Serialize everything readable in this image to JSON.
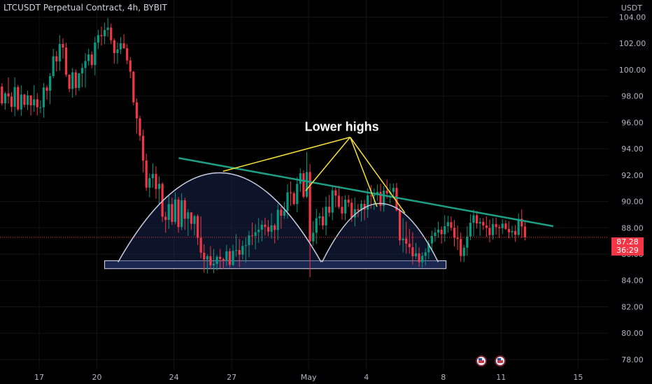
{
  "header": {
    "title": "LTCUSDT Perpetual Contract, 4h, BYBIT",
    "currency": "USDT"
  },
  "price_badge": {
    "price": "87.28",
    "countdown": "36:29"
  },
  "colors": {
    "up": "#089981",
    "down": "#f23645",
    "trendline": "#1e9e84",
    "annotation": "#f7e03c",
    "dome": "#c9cbe0",
    "support": "#d8dcee"
  },
  "icons": [
    "economic-event-flag-icon",
    "economic-event-flag-icon"
  ],
  "chart_data": {
    "type": "candlestick",
    "ylim": [
      77.2,
      105.3
    ],
    "y_ticks": [
      {
        "value": 104,
        "label": "104.00"
      },
      {
        "value": 102,
        "label": "102.00"
      },
      {
        "value": 100,
        "label": "100.00"
      },
      {
        "value": 98,
        "label": "98.00"
      },
      {
        "value": 96,
        "label": "96.00"
      },
      {
        "value": 94,
        "label": "94.00"
      },
      {
        "value": 92,
        "label": "92.00"
      },
      {
        "value": 90,
        "label": "90.00"
      },
      {
        "value": 88,
        "label": "88.00"
      },
      {
        "value": 86,
        "label": "86.00"
      },
      {
        "value": 84,
        "label": "84.00"
      },
      {
        "value": 82,
        "label": "82.00"
      },
      {
        "value": 80,
        "label": "80.00"
      },
      {
        "value": 78,
        "label": "78.00"
      }
    ],
    "x_ticks": [
      {
        "day": 17,
        "label": "17"
      },
      {
        "day": 20,
        "label": "20"
      },
      {
        "day": 24,
        "label": "24"
      },
      {
        "day": 27,
        "label": "27"
      },
      {
        "day": 31,
        "label": "May"
      },
      {
        "day": 34,
        "label": "4"
      },
      {
        "day": 38,
        "label": "8"
      },
      {
        "day": 41,
        "label": "11"
      },
      {
        "day": 45,
        "label": "15"
      }
    ],
    "last_price": 87.28,
    "candles_ohlc": [
      [
        98.15,
        98.56,
        97.47,
        98.04
      ],
      [
        98.04,
        98.04,
        96.91,
        97.24
      ],
      [
        97.24,
        98.31,
        96.29,
        98.08
      ],
      [
        98.08,
        99.28,
        97.23,
        98.73
      ],
      [
        98.73,
        98.98,
        97.28,
        97.45
      ],
      [
        97.45,
        98.33,
        96.97,
        98.21
      ],
      [
        98.21,
        99.42,
        97.43,
        97.97
      ],
      [
        97.97,
        98.31,
        96.79,
        97.19
      ],
      [
        97.19,
        99.42,
        96.48,
        98.69
      ],
      [
        98.69,
        98.85,
        96.87,
        96.99
      ],
      [
        96.99,
        98.82,
        96.5,
        98.12
      ],
      [
        98.12,
        98.18,
        97.14,
        97.34
      ],
      [
        97.34,
        98.42,
        96.95,
        98.06
      ],
      [
        98.06,
        98.06,
        96.53,
        97.3
      ],
      [
        97.3,
        98.83,
        96.82,
        97.76
      ],
      [
        97.76,
        98.23,
        96.53,
        97.15
      ],
      [
        97.15,
        97.68,
        96.71,
        97.15
      ],
      [
        97.15,
        99.0,
        96.36,
        98.66
      ],
      [
        98.66,
        98.82,
        97.74,
        98.41
      ],
      [
        98.41,
        99.75,
        97.39,
        99.52
      ],
      [
        99.52,
        101.59,
        99.36,
        101.02
      ],
      [
        101.02,
        101.42,
        99.88,
        100.64
      ],
      [
        100.64,
        102.63,
        99.93,
        101.96
      ],
      [
        101.96,
        102.39,
        100.86,
        101.69
      ],
      [
        101.69,
        102.05,
        99.46,
        99.63
      ],
      [
        99.63,
        99.65,
        98.29,
        98.55
      ],
      [
        98.55,
        100.13,
        97.87,
        99.81
      ],
      [
        99.81,
        100.03,
        98.06,
        98.62
      ],
      [
        98.62,
        99.77,
        98.39,
        99.73
      ],
      [
        99.73,
        100.48,
        98.68,
        100.14
      ],
      [
        100.14,
        101.25,
        98.64,
        100.67
      ],
      [
        100.67,
        101.6,
        100.32,
        101.16
      ],
      [
        101.16,
        101.4,
        100.12,
        100.36
      ],
      [
        100.36,
        102.51,
        99.58,
        102.07
      ],
      [
        102.07,
        103.04,
        101.58,
        102.63
      ],
      [
        102.63,
        103.28,
        101.84,
        102.55
      ],
      [
        102.55,
        103.58,
        101.96,
        103.02
      ],
      [
        103.02,
        103.93,
        102.5,
        103.21
      ],
      [
        103.21,
        103.5,
        101.94,
        102.24
      ],
      [
        102.24,
        102.39,
        100.47,
        101.27
      ],
      [
        101.27,
        102.08,
        100.45,
        101.55
      ],
      [
        101.55,
        102.49,
        101.2,
        102.01
      ],
      [
        102.01,
        102.69,
        101.59,
        101.64
      ],
      [
        101.64,
        101.95,
        100.43,
        100.71
      ],
      [
        100.71,
        100.97,
        99.37,
        99.86
      ],
      [
        99.86,
        99.91,
        97.3,
        97.53
      ],
      [
        97.53,
        97.82,
        95.15,
        96.31
      ],
      [
        96.31,
        96.5,
        94.61,
        94.99
      ],
      [
        94.99,
        95.46,
        92.22,
        93.11
      ],
      [
        93.11,
        93.63,
        90.8,
        91.05
      ],
      [
        91.05,
        92.13,
        90.33,
        91.77
      ],
      [
        91.77,
        92.88,
        91.04,
        92.09
      ],
      [
        92.09,
        92.67,
        90.21,
        90.95
      ],
      [
        90.95,
        91.91,
        89.76,
        91.34
      ],
      [
        91.34,
        91.46,
        88.44,
        88.84
      ],
      [
        88.84,
        89.22,
        87.63,
        88.6
      ],
      [
        88.6,
        90.49,
        87.92,
        89.8
      ],
      [
        89.8,
        90.29,
        88.22,
        88.45
      ],
      [
        88.45,
        90.69,
        88.26,
        90.15
      ],
      [
        90.15,
        90.34,
        87.63,
        88.06
      ],
      [
        88.06,
        90.62,
        87.82,
        90.09
      ],
      [
        90.09,
        90.29,
        87.85,
        88.69
      ],
      [
        88.69,
        89.42,
        87.38,
        89.17
      ],
      [
        89.17,
        89.2,
        87.84,
        88.3
      ],
      [
        88.3,
        88.98,
        87.41,
        88.89
      ],
      [
        88.89,
        89.03,
        86.69,
        87.24
      ],
      [
        87.24,
        88.86,
        85.69,
        86.11
      ],
      [
        86.11,
        86.75,
        84.6,
        85.6
      ],
      [
        85.6,
        85.99,
        84.53,
        85.85
      ],
      [
        85.85,
        86.6,
        84.87,
        85.15
      ],
      [
        85.15,
        86.39,
        84.56,
        85.26
      ],
      [
        85.26,
        85.94,
        84.77,
        85.81
      ],
      [
        85.81,
        86.4,
        84.95,
        85.63
      ],
      [
        85.63,
        85.73,
        84.86,
        85.48
      ],
      [
        85.48,
        86.7,
        85.09,
        86.22
      ],
      [
        86.22,
        86.45,
        84.99,
        85.18
      ],
      [
        85.18,
        86.72,
        85.09,
        86.25
      ],
      [
        86.25,
        87.53,
        85.81,
        86.31
      ],
      [
        86.31,
        87.16,
        85.02,
        85.96
      ],
      [
        85.96,
        87.03,
        85.6,
        86.62
      ],
      [
        86.62,
        87.31,
        85.35,
        86.68
      ],
      [
        86.68,
        87.76,
        85.76,
        87.42
      ],
      [
        87.42,
        88.4,
        86.69,
        87.39
      ],
      [
        87.39,
        88.28,
        86.37,
        87.67
      ],
      [
        87.67,
        88.73,
        86.86,
        87.86
      ],
      [
        87.86,
        88.57,
        86.98,
        88.24
      ],
      [
        88.24,
        88.78,
        87.42,
        88.07
      ],
      [
        88.07,
        88.59,
        87.37,
        87.71
      ],
      [
        87.71,
        89.11,
        87.18,
        88.19
      ],
      [
        88.19,
        88.32,
        86.82,
        87.84
      ],
      [
        87.84,
        89.82,
        87.08,
        89.37
      ],
      [
        89.37,
        89.59,
        87.94,
        88.92
      ],
      [
        88.92,
        89.96,
        88.68,
        89.28
      ],
      [
        89.28,
        91.32,
        88.71,
        90.69
      ],
      [
        90.69,
        91.52,
        89.67,
        90.63
      ],
      [
        90.63,
        90.76,
        89.7,
        89.81
      ],
      [
        89.81,
        91.86,
        89.19,
        91.34
      ],
      [
        91.34,
        92.51,
        90.73,
        92.14
      ],
      [
        92.14,
        92.36,
        90.23,
        90.36
      ],
      [
        90.36,
        93.76,
        90.26,
        92.24
      ],
      [
        92.24,
        92.85,
        84.25,
        86.97
      ],
      [
        86.97,
        88.5,
        86.63,
        87.62
      ],
      [
        87.62,
        89.44,
        86.77,
        88.73
      ],
      [
        88.73,
        89.13,
        88.19,
        88.87
      ],
      [
        88.87,
        89.54,
        87.87,
        88.18
      ],
      [
        88.18,
        90.37,
        87.42,
        89.6
      ],
      [
        89.6,
        90.5,
        88.85,
        89.15
      ],
      [
        89.15,
        91.22,
        88.58,
        90.84
      ],
      [
        90.84,
        91.19,
        89.56,
        90.44
      ],
      [
        90.44,
        91.2,
        89.45,
        89.59
      ],
      [
        89.59,
        90.4,
        88.62,
        89.09
      ],
      [
        89.09,
        90.48,
        88.57,
        90.13
      ],
      [
        90.13,
        90.49,
        89.58,
        89.91
      ],
      [
        89.91,
        90.23,
        88.46,
        88.79
      ],
      [
        88.79,
        90.3,
        88.11,
        89.42
      ],
      [
        89.42,
        89.81,
        88.8,
        89.3
      ],
      [
        89.3,
        90.1,
        88.48,
        89.82
      ],
      [
        89.82,
        90.12,
        88.57,
        89.38
      ],
      [
        89.38,
        91.0,
        88.77,
        90.46
      ],
      [
        90.46,
        91.25,
        89.46,
        90.42
      ],
      [
        90.42,
        91.0,
        89.37,
        90.51
      ],
      [
        90.51,
        91.28,
        90.05,
        90.73
      ],
      [
        90.73,
        91.35,
        89.27,
        89.67
      ],
      [
        89.67,
        91.18,
        89.24,
        90.82
      ],
      [
        90.82,
        91.66,
        90.22,
        90.61
      ],
      [
        90.61,
        91.36,
        89.85,
        90.73
      ],
      [
        90.73,
        91.37,
        90.26,
        91.03
      ],
      [
        91.03,
        91.4,
        89.24,
        89.33
      ],
      [
        89.33,
        89.55,
        86.68,
        87.05
      ],
      [
        87.05,
        88.74,
        86.13,
        87.19
      ],
      [
        87.19,
        88.47,
        86.05,
        86.79
      ],
      [
        86.79,
        87.92,
        86.04,
        86.53
      ],
      [
        86.53,
        87.66,
        85.21,
        85.84
      ],
      [
        85.84,
        86.85,
        85.61,
        86.06
      ],
      [
        86.06,
        86.51,
        85.03,
        85.39
      ],
      [
        85.39,
        86.14,
        84.99,
        85.87
      ],
      [
        85.87,
        86.44,
        85.13,
        86.14
      ],
      [
        86.14,
        87.07,
        85.63,
        86.81
      ],
      [
        86.81,
        87.79,
        86.38,
        87.38
      ],
      [
        87.38,
        88.0,
        86.94,
        87.64
      ],
      [
        87.64,
        88.46,
        87.26,
        87.86
      ],
      [
        87.86,
        88.11,
        86.8,
        87.51
      ],
      [
        87.51,
        88.96,
        86.94,
        88.12
      ],
      [
        88.12,
        88.91,
        87.63,
        88.43
      ],
      [
        88.43,
        88.86,
        87.78,
        88.0
      ],
      [
        88.0,
        88.6,
        86.59,
        87.25
      ],
      [
        87.25,
        88.17,
        86.32,
        87.15
      ],
      [
        87.15,
        87.64,
        85.43,
        85.86
      ],
      [
        85.86,
        86.71,
        85.4,
        86.49
      ],
      [
        86.49,
        88.11,
        85.88,
        87.34
      ],
      [
        87.34,
        89.04,
        87.07,
        88.38
      ],
      [
        88.38,
        89.39,
        87.35,
        88.95
      ],
      [
        88.95,
        89.28,
        87.97,
        88.33
      ],
      [
        88.33,
        88.76,
        87.37,
        88.45
      ],
      [
        88.45,
        88.74,
        87.84,
        88.18
      ],
      [
        88.18,
        88.86,
        87.3,
        87.99
      ],
      [
        87.99,
        88.62,
        86.9,
        87.45
      ],
      [
        87.45,
        88.73,
        87.1,
        88.28
      ],
      [
        88.28,
        88.78,
        87.49,
        88.05
      ],
      [
        88.05,
        88.24,
        87.23,
        87.97
      ],
      [
        87.97,
        88.65,
        87.54,
        88.32
      ],
      [
        88.32,
        88.58,
        87.84,
        87.92
      ],
      [
        87.92,
        88.48,
        87.2,
        87.66
      ],
      [
        87.66,
        88.15,
        87.25,
        87.76
      ],
      [
        87.76,
        88.21,
        86.93,
        87.47
      ],
      [
        87.47,
        89.09,
        87.35,
        88.68
      ],
      [
        88.68,
        89.39,
        87.23,
        88.1
      ],
      [
        88.1,
        88.53,
        87.04,
        87.28
      ]
    ],
    "annotations": {
      "label": "Lower highs",
      "tip": {
        "day": 33.16,
        "price": 94.88
      },
      "targets": [
        {
          "day": 26.55,
          "price": 92.29
        },
        {
          "day": 30.84,
          "price": 90.81
        },
        {
          "day": 34.55,
          "price": 89.6
        },
        {
          "day": 36.0,
          "price": 89.13
        }
      ],
      "trendline": [
        {
          "day": 24.25,
          "price": 93.3
        },
        {
          "day": 43.71,
          "price": 88.12
        }
      ],
      "support_zone": [
        {
          "day": 20.4,
          "price": 85.5
        },
        {
          "day": 38.14,
          "price": 84.9
        }
      ],
      "domes": [
        {
          "start_day": 21.1,
          "end_day": 31.65,
          "base": 85.4,
          "peak": 92.18
        },
        {
          "start_day": 31.7,
          "end_day": 37.73,
          "base": 85.4,
          "peak": 89.85
        }
      ]
    }
  }
}
